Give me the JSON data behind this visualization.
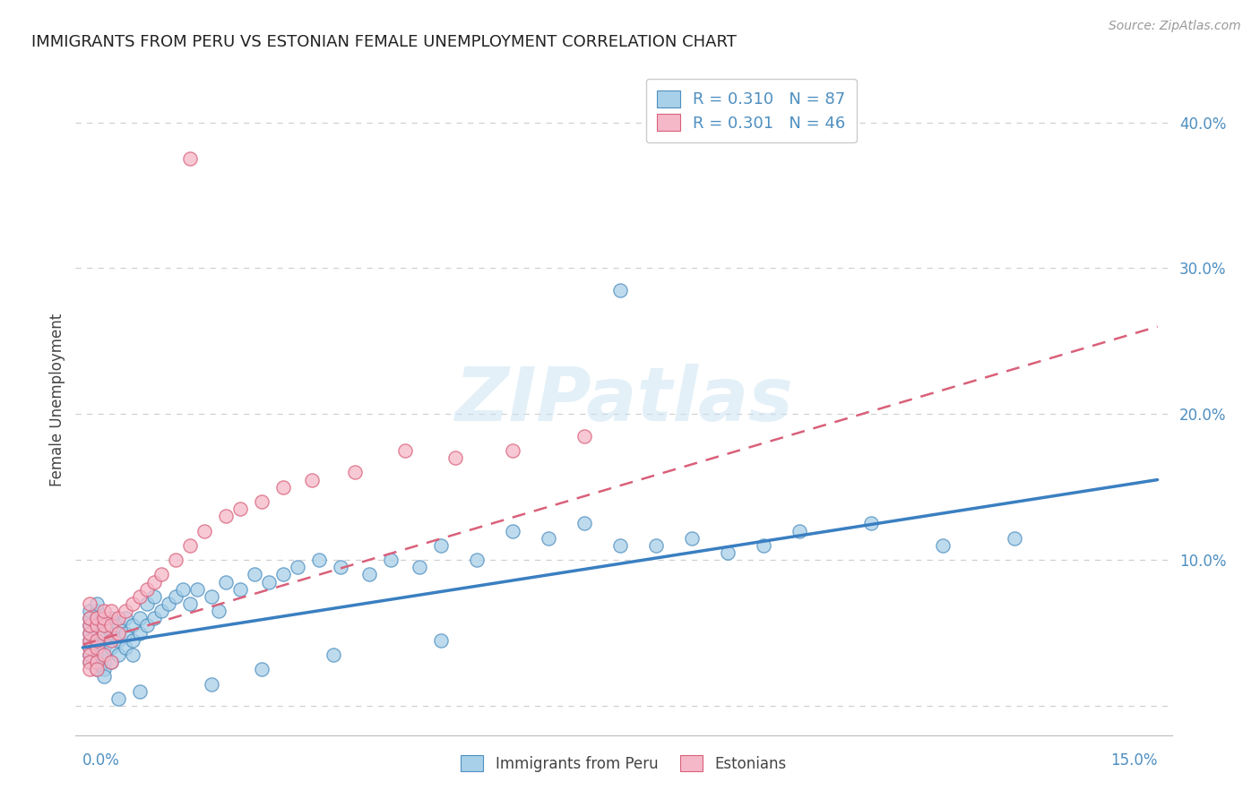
{
  "title": "IMMIGRANTS FROM PERU VS ESTONIAN FEMALE UNEMPLOYMENT CORRELATION CHART",
  "source": "Source: ZipAtlas.com",
  "ylabel": "Female Unemployment",
  "watermark_zip": "ZIP",
  "watermark_atlas": "atlas",
  "xlim": [
    0.0,
    0.15
  ],
  "ylim": [
    -0.02,
    0.44
  ],
  "right_ytick_vals": [
    0.0,
    0.1,
    0.2,
    0.3,
    0.4
  ],
  "right_ytick_labels": [
    "",
    "10.0%",
    "20.0%",
    "30.0%",
    "40.0%"
  ],
  "blue_scatter_color": "#a8d0e8",
  "blue_scatter_edge": "#4e8fc0",
  "pink_scatter_color": "#f5b8c8",
  "pink_scatter_edge": "#d9607a",
  "blue_line_color": "#3a7fc1",
  "pink_line_color": "#d9607a",
  "axis_tick_color": "#4e8fc0",
  "title_color": "#222222",
  "source_color": "#999999",
  "grid_color": "#d0d0d0",
  "legend_text_color": "#4e8fc0",
  "legend_n_color": "#d04040",
  "peru_trendline": [
    0.0,
    0.15,
    0.04,
    0.155
  ],
  "estonian_trendline": [
    0.0,
    0.15,
    0.042,
    0.26
  ],
  "peru_x": [
    0.001,
    0.001,
    0.001,
    0.001,
    0.001,
    0.001,
    0.001,
    0.001,
    0.002,
    0.002,
    0.002,
    0.002,
    0.002,
    0.002,
    0.002,
    0.002,
    0.002,
    0.003,
    0.003,
    0.003,
    0.003,
    0.003,
    0.003,
    0.003,
    0.004,
    0.004,
    0.004,
    0.004,
    0.004,
    0.005,
    0.005,
    0.005,
    0.005,
    0.006,
    0.006,
    0.006,
    0.007,
    0.007,
    0.007,
    0.008,
    0.008,
    0.009,
    0.009,
    0.01,
    0.01,
    0.011,
    0.012,
    0.013,
    0.014,
    0.015,
    0.016,
    0.018,
    0.019,
    0.02,
    0.022,
    0.024,
    0.026,
    0.028,
    0.03,
    0.033,
    0.036,
    0.04,
    0.043,
    0.047,
    0.05,
    0.055,
    0.06,
    0.065,
    0.07,
    0.075,
    0.08,
    0.085,
    0.09,
    0.095,
    0.1,
    0.11,
    0.12,
    0.13,
    0.075,
    0.05,
    0.035,
    0.025,
    0.018,
    0.008,
    0.005,
    0.003,
    0.002
  ],
  "peru_y": [
    0.04,
    0.045,
    0.05,
    0.055,
    0.06,
    0.065,
    0.035,
    0.03,
    0.04,
    0.045,
    0.05,
    0.055,
    0.06,
    0.035,
    0.03,
    0.025,
    0.065,
    0.04,
    0.045,
    0.05,
    0.055,
    0.03,
    0.025,
    0.035,
    0.04,
    0.05,
    0.055,
    0.06,
    0.03,
    0.045,
    0.05,
    0.055,
    0.035,
    0.04,
    0.05,
    0.06,
    0.045,
    0.055,
    0.035,
    0.05,
    0.06,
    0.055,
    0.07,
    0.06,
    0.075,
    0.065,
    0.07,
    0.075,
    0.08,
    0.07,
    0.08,
    0.075,
    0.065,
    0.085,
    0.08,
    0.09,
    0.085,
    0.09,
    0.095,
    0.1,
    0.095,
    0.09,
    0.1,
    0.095,
    0.11,
    0.1,
    0.12,
    0.115,
    0.125,
    0.11,
    0.11,
    0.115,
    0.105,
    0.11,
    0.12,
    0.125,
    0.11,
    0.115,
    0.285,
    0.045,
    0.035,
    0.025,
    0.015,
    0.01,
    0.005,
    0.02,
    0.07
  ],
  "estonian_x": [
    0.001,
    0.001,
    0.001,
    0.001,
    0.001,
    0.001,
    0.001,
    0.001,
    0.001,
    0.002,
    0.002,
    0.002,
    0.002,
    0.002,
    0.002,
    0.003,
    0.003,
    0.003,
    0.003,
    0.003,
    0.004,
    0.004,
    0.004,
    0.004,
    0.005,
    0.005,
    0.006,
    0.007,
    0.008,
    0.009,
    0.01,
    0.011,
    0.013,
    0.015,
    0.017,
    0.02,
    0.022,
    0.025,
    0.028,
    0.032,
    0.038,
    0.045,
    0.052,
    0.06,
    0.07,
    0.015
  ],
  "estonian_y": [
    0.04,
    0.045,
    0.05,
    0.055,
    0.06,
    0.035,
    0.03,
    0.025,
    0.07,
    0.04,
    0.045,
    0.055,
    0.06,
    0.03,
    0.025,
    0.05,
    0.055,
    0.06,
    0.035,
    0.065,
    0.045,
    0.055,
    0.065,
    0.03,
    0.05,
    0.06,
    0.065,
    0.07,
    0.075,
    0.08,
    0.085,
    0.09,
    0.1,
    0.11,
    0.12,
    0.13,
    0.135,
    0.14,
    0.15,
    0.155,
    0.16,
    0.175,
    0.17,
    0.175,
    0.185,
    0.375
  ]
}
